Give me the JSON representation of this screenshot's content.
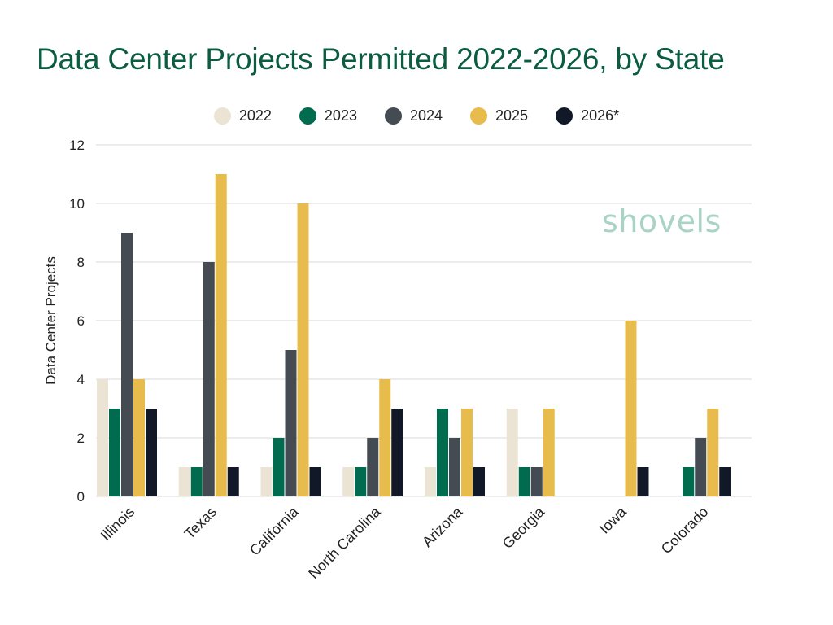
{
  "title": "Data Center Projects Permitted 2022-2026, by State",
  "logo_text": "shovels",
  "colors": {
    "title": "#0b5c40",
    "grid": "#d9d9d9",
    "logo": "#a9d3c4"
  },
  "chart_data": {
    "type": "bar",
    "title": "Data Center Projects Permitted 2022-2026, by State",
    "xlabel": "",
    "ylabel": "Data Center Projects",
    "ylim": [
      0,
      12
    ],
    "yticks": [
      0,
      2,
      4,
      6,
      8,
      10,
      12
    ],
    "grid": true,
    "legend_position": "top",
    "categories": [
      "Illinois",
      "Texas",
      "California",
      "North Carolina",
      "Arizona",
      "Georgia",
      "Iowa",
      "Colorado"
    ],
    "series": [
      {
        "name": "2022",
        "color": "#ebe3d3",
        "values": [
          4,
          1,
          1,
          1,
          1,
          3,
          0,
          0
        ]
      },
      {
        "name": "2023",
        "color": "#006b4f",
        "values": [
          3,
          1,
          2,
          1,
          3,
          1,
          0,
          1
        ]
      },
      {
        "name": "2024",
        "color": "#454b52",
        "values": [
          9,
          8,
          5,
          2,
          2,
          1,
          0,
          2
        ]
      },
      {
        "name": "2025",
        "color": "#e8bc4c",
        "values": [
          4,
          11,
          10,
          4,
          3,
          3,
          6,
          3
        ]
      },
      {
        "name": "2026*",
        "color": "#111827",
        "values": [
          3,
          1,
          1,
          3,
          1,
          0,
          1,
          1
        ]
      }
    ]
  }
}
